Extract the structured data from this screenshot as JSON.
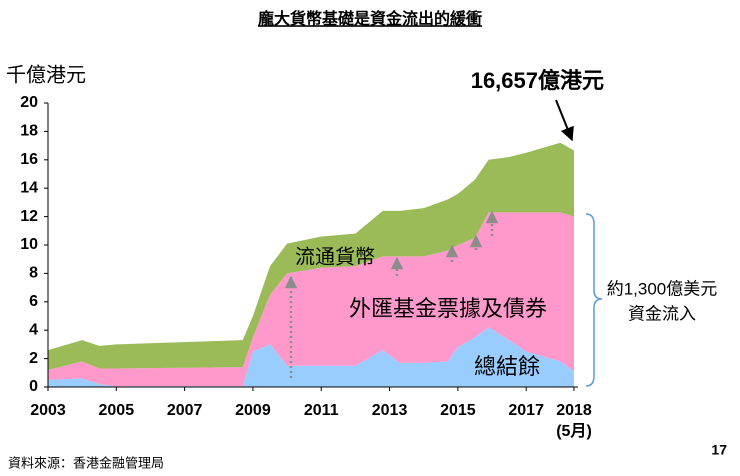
{
  "chart_data": {
    "type": "stacked_area",
    "title": "龐大貨幣基礎是資金流出的緩衝",
    "y_label": "千億港元",
    "x": [
      2003,
      2004,
      2004.5,
      2005,
      2008.7,
      2009,
      2009.5,
      2010,
      2011,
      2012,
      2012.8,
      2013.3,
      2014,
      2014.7,
      2015,
      2015.5,
      2015.9,
      2016.5,
      2017,
      2018,
      2018.4
    ],
    "series": [
      {
        "name": "總結餘",
        "color": "#99ccff",
        "values": [
          0.5,
          0.6,
          0.2,
          0.05,
          0.05,
          2.5,
          3.0,
          1.5,
          1.5,
          1.5,
          2.6,
          1.7,
          1.7,
          1.8,
          2.8,
          3.5,
          4.2,
          3.3,
          2.5,
          1.8,
          1.1
        ]
      },
      {
        "name": "外匯基金票據及債券",
        "color": "#ff99cc",
        "values": [
          0.7,
          1.2,
          1.1,
          1.25,
          1.35,
          1.0,
          3.5,
          6.5,
          6.9,
          7.0,
          6.6,
          7.5,
          7.5,
          7.8,
          7.2,
          7.0,
          8.1,
          9.0,
          9.8,
          10.5,
          10.9
        ]
      },
      {
        "name": "流通貨幣",
        "color": "#9bbb59",
        "values": [
          1.4,
          1.5,
          1.6,
          1.7,
          1.9,
          1.5,
          2.0,
          2.1,
          2.2,
          2.3,
          3.2,
          3.2,
          3.4,
          3.6,
          3.6,
          4.1,
          3.7,
          3.9,
          4.2,
          4.9,
          4.657
        ]
      }
    ],
    "xlim": [
      2003,
      2018.4
    ],
    "xticks": [
      2003,
      2005,
      2007,
      2009,
      2011,
      2013,
      2015,
      2017,
      {
        "value": 2018.4,
        "label": "2018"
      }
    ],
    "x_note": "(5月)",
    "ylim": [
      0,
      20
    ],
    "yticks": [
      0,
      2,
      4,
      6,
      8,
      10,
      12,
      14,
      16,
      18,
      20
    ],
    "grid": false,
    "annotations": {
      "latest": "16,657億港元",
      "inflow_1": "約1,300億美元",
      "inflow_2": "資金流入"
    },
    "source": "資料來源：香港金融管理局",
    "page_number": "17"
  }
}
